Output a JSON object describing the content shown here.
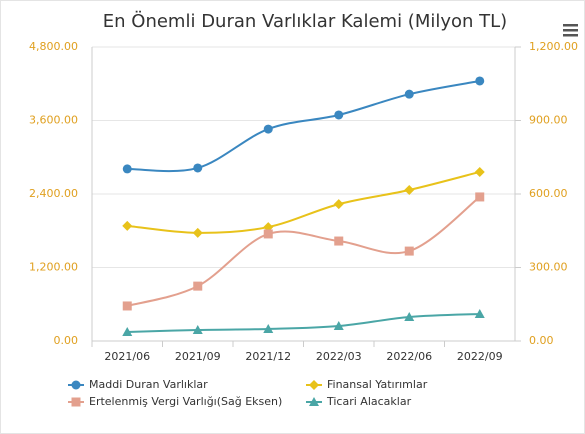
{
  "chart_data": {
    "type": "line",
    "title": "En Önemli Duran Varlıklar Kalemi (Milyon TL)",
    "categories": [
      "2021/06",
      "2021/09",
      "2021/12",
      "2022/03",
      "2022/06",
      "2022/09"
    ],
    "ylim": [
      0,
      4800
    ],
    "yticks": [
      {
        "value": 0,
        "label": "0.00"
      },
      {
        "value": 1200,
        "label": "1,200.00"
      },
      {
        "value": 2400,
        "label": "2,400.00"
      },
      {
        "value": 3600,
        "label": "3,600.00"
      },
      {
        "value": 4800,
        "label": "4,800.00"
      }
    ],
    "y2lim": [
      0,
      1200
    ],
    "y2ticks": [
      {
        "value": 0,
        "label": "0.00"
      },
      {
        "value": 300,
        "label": "300.00"
      },
      {
        "value": 600,
        "label": "600.00"
      },
      {
        "value": 900,
        "label": "900.00"
      },
      {
        "value": 1200,
        "label": "1,200.00"
      }
    ],
    "grid": true,
    "series": [
      {
        "name": "Maddi Duran Varlıklar",
        "color": "#3a87c0",
        "marker": "circle",
        "values": [
          2810,
          2825,
          3460,
          3690,
          4030,
          4245
        ]
      },
      {
        "name": "Finansal Yatırımlar",
        "color": "#e8c21a",
        "marker": "diamond",
        "values": [
          1880,
          1765,
          1860,
          2235,
          2465,
          2760
        ]
      },
      {
        "name": "Ertelenmiş Vergi Varlığı(Sağ Eksen)",
        "color": "#e3a08e",
        "marker": "square",
        "axis": "y2",
        "values": [
          143,
          224,
          437,
          408,
          367,
          588
        ]
      },
      {
        "name": "Ticari Alacaklar",
        "color": "#4aa6a6",
        "marker": "triangle",
        "values": [
          147,
          180,
          196,
          245,
          392,
          441
        ]
      }
    ]
  }
}
